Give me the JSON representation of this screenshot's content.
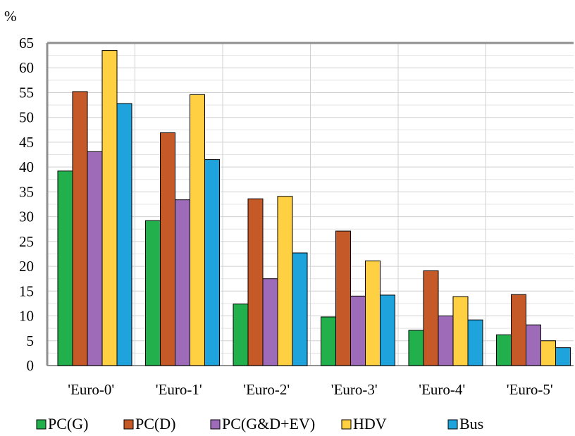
{
  "chart_data": {
    "type": "bar",
    "title": "",
    "xlabel": "",
    "ylabel": "%",
    "ylim": [
      0,
      65
    ],
    "yticks": [
      0,
      5,
      10,
      15,
      20,
      25,
      30,
      35,
      40,
      45,
      50,
      55,
      60,
      65
    ],
    "grid": true,
    "legend_position": "bottom",
    "categories": [
      "'Euro-0'",
      "'Euro-1'",
      "'Euro-2'",
      "'Euro-3'",
      "'Euro-4'",
      "'Euro-5'"
    ],
    "series": [
      {
        "name": "PC(G)",
        "color": "#21b04b",
        "values": [
          39.2,
          29.2,
          12.4,
          9.8,
          7.1,
          6.2
        ]
      },
      {
        "name": "PC(D)",
        "color": "#c55a28",
        "values": [
          55.2,
          46.9,
          33.6,
          27.1,
          19.1,
          14.3
        ]
      },
      {
        "name": "PC(G&D+EV)",
        "color": "#9e6bb8",
        "values": [
          43.1,
          33.4,
          17.5,
          14.0,
          10.0,
          8.2
        ]
      },
      {
        "name": "HDV",
        "color": "#ffd042",
        "values": [
          63.5,
          54.6,
          34.1,
          21.1,
          13.9,
          5.0
        ]
      },
      {
        "name": "Bus",
        "color": "#1fa3dd",
        "values": [
          52.8,
          41.5,
          22.7,
          14.2,
          9.2,
          3.6
        ]
      }
    ]
  }
}
